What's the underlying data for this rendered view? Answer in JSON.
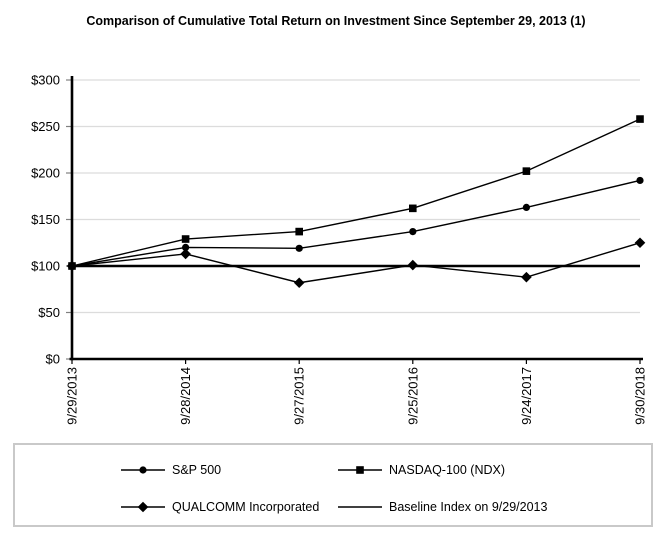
{
  "title": "Comparison of Cumulative Total Return on Investment Since September 29, 2013 (1)",
  "colors": {
    "series_line": "#000000",
    "axis": "#000000",
    "gridline": "#dcdcdc",
    "y_tick": "#808080",
    "legend_border": "#c9c9c9",
    "background": "#ffffff",
    "text": "#000000"
  },
  "chart_data": {
    "type": "line",
    "title": "Comparison of Cumulative Total Return on Investment Since September 29, 2013 (1)",
    "categories": [
      "9/29/2013",
      "9/28/2014",
      "9/27/2015",
      "9/25/2016",
      "9/24/2017",
      "9/30/2018"
    ],
    "series": [
      {
        "name": "S&P 500",
        "marker": "circle",
        "values": [
          100,
          120,
          119,
          137,
          163,
          192
        ]
      },
      {
        "name": "NASDAQ-100 (NDX)",
        "marker": "square",
        "values": [
          100,
          129,
          137,
          162,
          202,
          258
        ]
      },
      {
        "name": "QUALCOMM Incorporated",
        "marker": "diamond",
        "values": [
          100,
          113,
          82,
          101,
          88,
          125
        ]
      },
      {
        "name": "Baseline Index on 9/29/2013",
        "marker": "none",
        "values": [
          100,
          100,
          100,
          100,
          100,
          100
        ]
      }
    ],
    "xlabel": "",
    "ylabel": "",
    "ylim": [
      0,
      300
    ],
    "y_ticks": [
      {
        "value": 0,
        "label": "$0"
      },
      {
        "value": 50,
        "label": "$50"
      },
      {
        "value": 100,
        "label": "$100"
      },
      {
        "value": 150,
        "label": "$150"
      },
      {
        "value": 200,
        "label": "$200"
      },
      {
        "value": 250,
        "label": "$250"
      },
      {
        "value": 300,
        "label": "$300"
      }
    ],
    "grid": "horizontal",
    "legend_position": "bottom-box",
    "x_label_rotation": 90
  },
  "legend": {
    "items": [
      {
        "label": "S&P 500",
        "marker": "circle"
      },
      {
        "label": "NASDAQ-100 (NDX)",
        "marker": "square"
      },
      {
        "label": "QUALCOMM Incorporated",
        "marker": "diamond"
      },
      {
        "label": "Baseline Index on 9/29/2013",
        "marker": "line"
      }
    ]
  }
}
